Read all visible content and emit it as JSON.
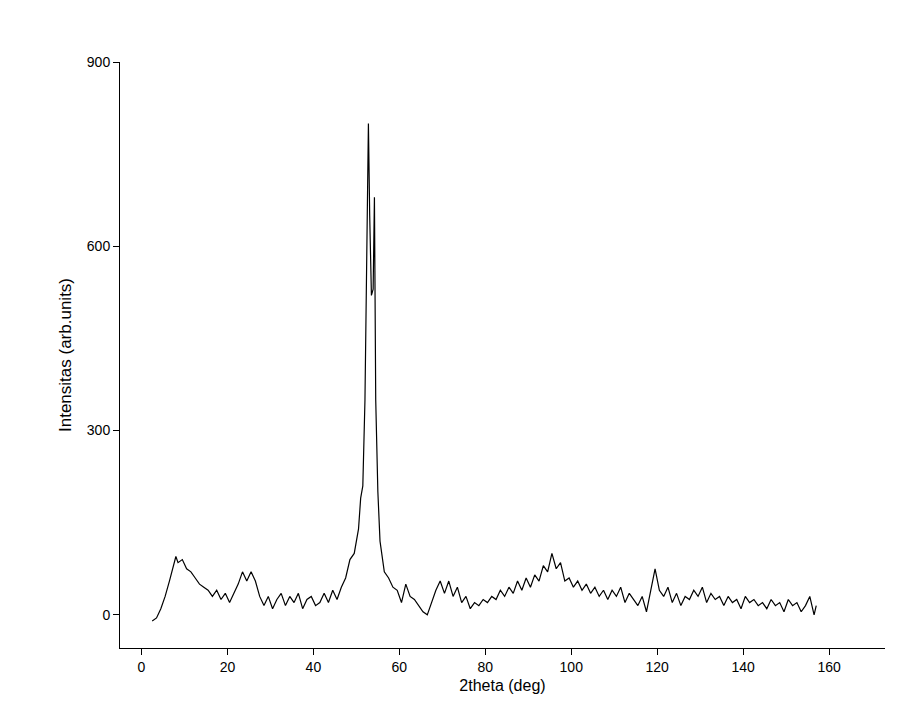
{
  "chart_data": {
    "type": "line",
    "x_label": "2theta (deg)",
    "y_label": "Intensitas (arb.units)",
    "color": "#000000",
    "grid": false,
    "xlim": [
      -5,
      173
    ],
    "ylim": [
      -54,
      900
    ],
    "xticks": [
      0,
      20,
      40,
      60,
      80,
      100,
      120,
      140,
      160
    ],
    "yticks": [
      0,
      300,
      600,
      900
    ],
    "x": [
      2.5,
      3.5,
      4.5,
      5.5,
      6.5,
      7.5,
      8,
      8.5,
      9.5,
      10.5,
      11.5,
      12.5,
      13.5,
      14.5,
      15.5,
      16.5,
      17.5,
      18.5,
      19.5,
      20.5,
      21.5,
      22.5,
      23.5,
      24.5,
      25.5,
      26.5,
      27.5,
      28.5,
      29.5,
      30.5,
      31.5,
      32.5,
      33.5,
      34.5,
      35.5,
      36.5,
      37.5,
      38.5,
      39.5,
      40.5,
      41.5,
      42.5,
      43.5,
      44.5,
      45.5,
      46.5,
      47.5,
      48.5,
      49.5,
      50.5,
      51,
      51.5,
      52,
      52.5,
      52.8,
      53.1,
      53.5,
      53.9,
      54.2,
      54.5,
      55,
      55.5,
      56,
      56.5,
      57.5,
      58.5,
      59.5,
      60.5,
      61.5,
      62.5,
      63.5,
      64.5,
      65.5,
      66.5,
      67.5,
      68.5,
      69.5,
      70.5,
      71.5,
      72.5,
      73.5,
      74.5,
      75.5,
      76.5,
      77.5,
      78.5,
      79.5,
      80.5,
      81.5,
      82.5,
      83.5,
      84.5,
      85.5,
      86.5,
      87.5,
      88.5,
      89.5,
      90.5,
      91.5,
      92.5,
      93.5,
      94.5,
      95.5,
      96.5,
      97.5,
      98.5,
      99.5,
      100.5,
      101.5,
      102.5,
      103.5,
      104.5,
      105.5,
      106.5,
      107.5,
      108.5,
      109.5,
      110.5,
      111.5,
      112.5,
      113.5,
      114.5,
      115.5,
      116.5,
      117.5,
      118.5,
      119.5,
      120.5,
      121.5,
      122.5,
      123.5,
      124.5,
      125.5,
      126.5,
      127.5,
      128.5,
      129.5,
      130.5,
      131.5,
      132.5,
      133.5,
      134.5,
      135.5,
      136.5,
      137.5,
      138.5,
      139.5,
      140.5,
      141.5,
      142.5,
      143.5,
      144.5,
      145.5,
      146.5,
      147.5,
      148.5,
      149.5,
      150.5,
      151.5,
      152.5,
      153.5,
      154.5,
      155.5,
      156.5,
      157
    ],
    "values": [
      -10,
      -5,
      10,
      30,
      55,
      80,
      95,
      85,
      90,
      75,
      70,
      60,
      50,
      45,
      40,
      30,
      40,
      25,
      35,
      20,
      35,
      50,
      70,
      55,
      70,
      55,
      30,
      15,
      30,
      10,
      25,
      35,
      15,
      30,
      20,
      35,
      10,
      25,
      30,
      15,
      20,
      35,
      20,
      40,
      25,
      45,
      60,
      90,
      100,
      140,
      190,
      210,
      350,
      700,
      800,
      650,
      520,
      530,
      680,
      350,
      200,
      120,
      90,
      70,
      60,
      45,
      40,
      20,
      50,
      30,
      25,
      15,
      5,
      0,
      20,
      40,
      55,
      35,
      55,
      30,
      45,
      20,
      30,
      10,
      20,
      15,
      25,
      20,
      30,
      25,
      40,
      30,
      45,
      35,
      55,
      40,
      60,
      45,
      65,
      55,
      80,
      70,
      100,
      75,
      85,
      55,
      60,
      45,
      55,
      40,
      50,
      35,
      45,
      30,
      40,
      25,
      40,
      30,
      45,
      20,
      35,
      25,
      15,
      30,
      5,
      40,
      75,
      40,
      30,
      45,
      20,
      35,
      15,
      30,
      25,
      40,
      30,
      45,
      20,
      35,
      25,
      30,
      15,
      30,
      20,
      25,
      10,
      30,
      20,
      25,
      15,
      20,
      10,
      25,
      15,
      20,
      5,
      25,
      15,
      20,
      5,
      15,
      30,
      0,
      15
    ]
  }
}
